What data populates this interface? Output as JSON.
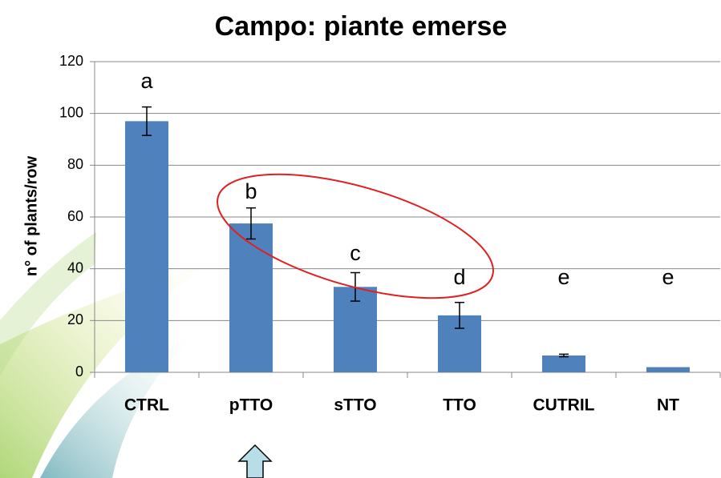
{
  "chart_data": {
    "type": "bar",
    "title": "Campo: piante emerse",
    "y_label": "n° of plants/row",
    "categories": [
      "CTRL",
      "pTTO",
      "sTTO",
      "TTO",
      "CUTRIL",
      "NT"
    ],
    "values": [
      97,
      57.5,
      33,
      22,
      6.5,
      2
    ],
    "errors": [
      5.5,
      6,
      5.5,
      5,
      0.5,
      null
    ],
    "letters": [
      "a",
      "b",
      "c",
      "d",
      "e",
      "e"
    ],
    "color": "#4f81bd",
    "ylim": [
      0,
      120
    ],
    "yticks": [
      0,
      20,
      40,
      60,
      80,
      100,
      120
    ],
    "grid": true
  }
}
